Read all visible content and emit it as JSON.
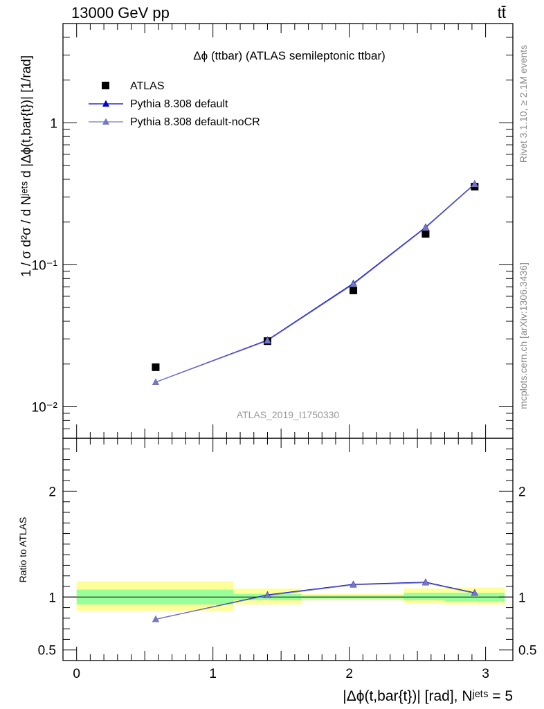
{
  "header": {
    "process": "13000 GeV pp",
    "final_state": "tt̄"
  },
  "side_labels": {
    "rivet": "Rivet 3.1.10, ≥ 2.1M events",
    "source": "mcplots.cern.ch [arXiv:1306.3436]"
  },
  "chart_data": [
    {
      "panel": "main",
      "type": "scatter",
      "title": "Δϕ (ttbar) (ATLAS semileptonic ttbar)",
      "analysis_label": "ATLAS_2019_I1750330",
      "ylabel": "1 / σ d²σ / d Nʲᵉᵗˢ d |Δϕ(t,bar{t})| [1/rad]",
      "yscale": "log",
      "ylim": [
        0.006,
        5
      ],
      "xlim": [
        -0.1,
        3.2
      ],
      "y_ticks": [
        {
          "v": 0.01,
          "label": "10⁻²"
        },
        {
          "v": 0.1,
          "label": "10⁻¹"
        },
        {
          "v": 1,
          "label": "1"
        }
      ],
      "legend_placement": "top-left",
      "series": [
        {
          "name": "ATLAS",
          "marker": "square",
          "color": "#000000",
          "x": [
            0.58,
            1.4,
            2.03,
            2.56,
            2.92
          ],
          "y": [
            0.019,
            0.029,
            0.066,
            0.165,
            0.355
          ]
        },
        {
          "name": "Pythia 8.308 default",
          "marker": "triangle",
          "color": "#0000cc",
          "x": [
            0.58,
            1.4,
            2.03,
            2.56,
            2.92
          ],
          "y": [
            0.0149,
            0.0295,
            0.074,
            0.184,
            0.372
          ]
        },
        {
          "name": "Pythia 8.308 default-noCR",
          "marker": "triangle",
          "color": "#7777bb",
          "x": [
            0.58,
            1.4,
            2.03,
            2.56,
            2.92
          ],
          "y": [
            0.0149,
            0.0292,
            0.073,
            0.182,
            0.369
          ]
        }
      ]
    },
    {
      "panel": "ratio",
      "type": "line",
      "ylabel": "Ratio to ATLAS",
      "xlabel": "|Δϕ(t,bar{t})| [rad], Nʲᵉᵗˢ = 5",
      "xlim": [
        -0.1,
        3.2
      ],
      "ylim": [
        0.4,
        2.5
      ],
      "x_ticks": [
        0,
        1,
        2,
        3
      ],
      "y_ticks": [
        {
          "v": 0.5,
          "label": "0.5"
        },
        {
          "v": 1,
          "label": "1"
        },
        {
          "v": 2,
          "label": "2"
        }
      ],
      "bands": [
        {
          "x0": 0,
          "x1": 1.15,
          "green": [
            0.93,
            1.07
          ],
          "yellow": [
            0.87,
            1.15
          ]
        },
        {
          "x0": 1.15,
          "x1": 1.65,
          "green": [
            0.97,
            1.03
          ],
          "yellow": [
            0.93,
            1.08
          ]
        },
        {
          "x0": 1.65,
          "x1": 2.4,
          "green": [
            0.985,
            1.015
          ],
          "yellow": [
            0.97,
            1.03
          ]
        },
        {
          "x0": 2.4,
          "x1": 2.7,
          "green": [
            0.97,
            1.04
          ],
          "yellow": [
            0.94,
            1.08
          ]
        },
        {
          "x0": 2.7,
          "x1": 3.14,
          "green": [
            0.96,
            1.04
          ],
          "yellow": [
            0.93,
            1.09
          ]
        }
      ],
      "series": [
        {
          "name": "Pythia 8.308 default",
          "color": "#0000cc",
          "x": [
            0.58,
            1.4,
            2.03,
            2.56,
            2.92
          ],
          "y": [
            0.79,
            1.02,
            1.12,
            1.14,
            1.04
          ]
        },
        {
          "name": "Pythia 8.308 default-noCR",
          "color": "#7777bb",
          "x": [
            0.58,
            1.4,
            2.03,
            2.56,
            2.92
          ],
          "y": [
            0.79,
            1.015,
            1.115,
            1.135,
            1.035
          ]
        }
      ]
    }
  ]
}
